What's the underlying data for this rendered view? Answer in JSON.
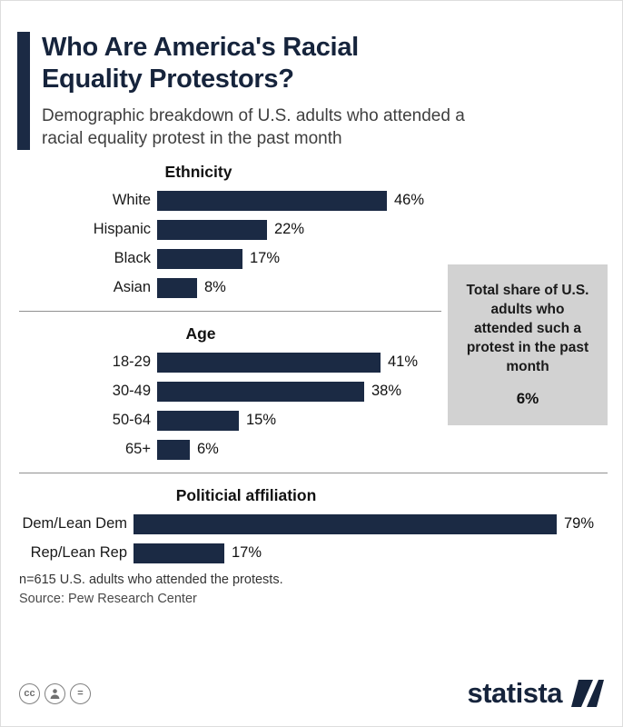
{
  "title": "Who Are America's Racial Equality Protestors?",
  "subtitle": "Demographic breakdown of U.S. adults who attended a racial equality protest in the past month",
  "callout": {
    "text": "Total share of U.S. adults who attended such a protest in the past month",
    "value": "6%"
  },
  "chart_data": [
    {
      "type": "bar",
      "title": "Ethnicity",
      "categories": [
        "White",
        "Hispanic",
        "Black",
        "Asian"
      ],
      "values": [
        46,
        22,
        17,
        8
      ],
      "unit": "%",
      "bar_color": "#1b2a44"
    },
    {
      "type": "bar",
      "title": "Age",
      "categories": [
        "18-29",
        "30-49",
        "50-64",
        "65+"
      ],
      "values": [
        41,
        38,
        15,
        6
      ],
      "unit": "%",
      "bar_color": "#1b2a44"
    },
    {
      "type": "bar",
      "title": "Politicial affiliation",
      "categories": [
        "Dem/Lean Dem",
        "Rep/Lean Rep"
      ],
      "values": [
        79,
        17
      ],
      "unit": "%",
      "bar_color": "#1b2a44"
    }
  ],
  "footnote": "n=615 U.S. adults who attended the protests.",
  "source": "Source: Pew Research Center",
  "branding": {
    "logo_text": "statista"
  },
  "icons": {
    "cc_label": "cc",
    "equals_label": "="
  },
  "colors": {
    "accent": "#1b2a44",
    "callout_bg": "#d2d2d2"
  }
}
